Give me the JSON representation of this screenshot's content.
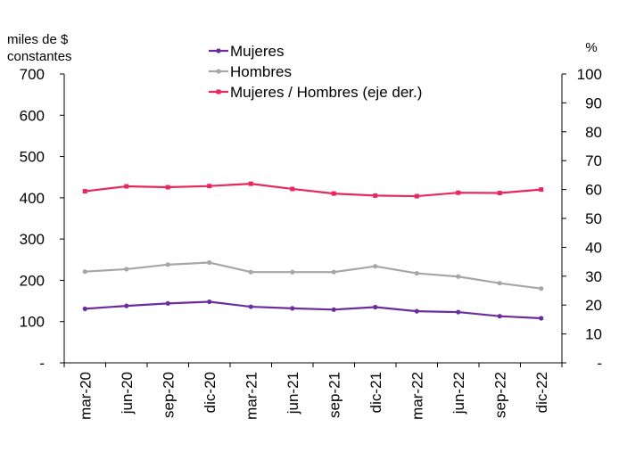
{
  "chart_data": {
    "type": "line",
    "categories": [
      "mar-20",
      "jun-20",
      "sep-20",
      "dic-20",
      "mar-21",
      "jun-21",
      "sep-21",
      "dic-21",
      "mar-22",
      "jun-22",
      "sep-22",
      "dic-22"
    ],
    "left_axis": {
      "unit_label_line1": "miles de $",
      "unit_label_line2": "constantes",
      "ylim": [
        0,
        700
      ],
      "ticks": [
        {
          "value": 0,
          "label": "-"
        },
        {
          "value": 100,
          "label": "100"
        },
        {
          "value": 200,
          "label": "200"
        },
        {
          "value": 300,
          "label": "300"
        },
        {
          "value": 400,
          "label": "400"
        },
        {
          "value": 500,
          "label": "500"
        },
        {
          "value": 600,
          "label": "600"
        },
        {
          "value": 700,
          "label": "700"
        }
      ]
    },
    "right_axis": {
      "unit_label": "%",
      "ylim": [
        0,
        100
      ],
      "ticks": [
        {
          "value": 0,
          "label": "-"
        },
        {
          "value": 10,
          "label": "10"
        },
        {
          "value": 20,
          "label": "20"
        },
        {
          "value": 30,
          "label": "30"
        },
        {
          "value": 40,
          "label": "40"
        },
        {
          "value": 50,
          "label": "50"
        },
        {
          "value": 60,
          "label": "60"
        },
        {
          "value": 70,
          "label": "70"
        },
        {
          "value": 80,
          "label": "80"
        },
        {
          "value": 90,
          "label": "90"
        },
        {
          "value": 100,
          "label": "100"
        }
      ]
    },
    "series": [
      {
        "name": "Mujeres",
        "axis": "left",
        "color": "#6a2c9e",
        "values": [
          131,
          138,
          144,
          148,
          136,
          132,
          129,
          135,
          125,
          123,
          113,
          108
        ]
      },
      {
        "name": "Hombres",
        "axis": "left",
        "color": "#a6a6a6",
        "values": [
          221,
          227,
          238,
          243,
          220,
          220,
          220,
          234,
          217,
          209,
          193,
          180
        ]
      },
      {
        "name": "Mujeres / Hombres (eje der.)",
        "axis": "right",
        "color": "#e8275d",
        "values": [
          59.4,
          61.1,
          60.8,
          61.2,
          62.0,
          60.2,
          58.6,
          57.9,
          57.7,
          58.9,
          58.8,
          60.0
        ]
      }
    ],
    "legend_position": "top-center"
  }
}
